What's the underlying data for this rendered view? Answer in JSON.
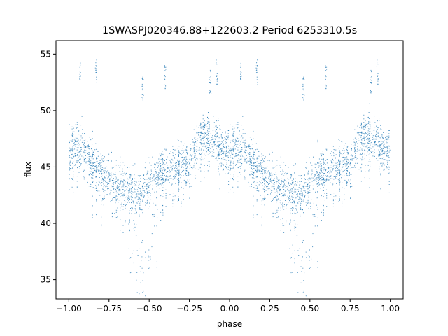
{
  "chart_data": {
    "type": "scatter",
    "title": "1SWASPJ020346.88+122603.2 Period 6253310.5s",
    "xlabel": "phase",
    "ylabel": "flux",
    "xlim": [
      -1.08,
      1.08
    ],
    "ylim": [
      33.3,
      56.2
    ],
    "x_ticks": [
      -1.0,
      -0.75,
      -0.5,
      -0.25,
      0.0,
      0.25,
      0.5,
      0.75,
      1.0
    ],
    "x_tick_labels": [
      "−1.00",
      "−0.75",
      "−0.50",
      "−0.25",
      "0.00",
      "0.25",
      "0.50",
      "0.75",
      "1.00"
    ],
    "y_ticks": [
      35,
      40,
      45,
      50,
      55
    ],
    "y_tick_labels": [
      "35",
      "40",
      "45",
      "50",
      "55"
    ],
    "grid": false,
    "legend": "none",
    "series_color": "#1f77b4",
    "light_curve_phase": [
      0.0,
      0.05,
      0.1,
      0.15,
      0.2,
      0.25,
      0.3,
      0.35,
      0.4,
      0.45,
      0.5,
      0.55,
      0.6,
      0.65,
      0.7,
      0.75,
      0.8,
      0.85,
      0.9,
      0.95,
      1.0
    ],
    "light_curve_flux": [
      46.3,
      46.8,
      46.4,
      45.2,
      44.4,
      43.8,
      43.2,
      43.0,
      42.8,
      42.6,
      43.6,
      44.4,
      44.6,
      44.8,
      45.2,
      45.4,
      46.8,
      47.8,
      47.4,
      46.6,
      46.3
    ],
    "flux_scatter": 1.2,
    "high_flux_clumps": [
      {
        "phase": 0.07,
        "flux": 53.2
      },
      {
        "phase": 0.17,
        "flux": 53.4
      },
      {
        "phase": 0.46,
        "flux": 52.0
      },
      {
        "phase": 0.6,
        "flux": 53.0
      },
      {
        "phase": 0.88,
        "flux": 52.5
      },
      {
        "phase": 0.92,
        "flux": 53.4
      }
    ],
    "low_flux_dips": [
      {
        "phase": 0.4,
        "flux": 37.5
      },
      {
        "phase": 0.45,
        "flux": 36.0
      },
      {
        "phase": 0.52,
        "flux": 38.5
      }
    ]
  }
}
